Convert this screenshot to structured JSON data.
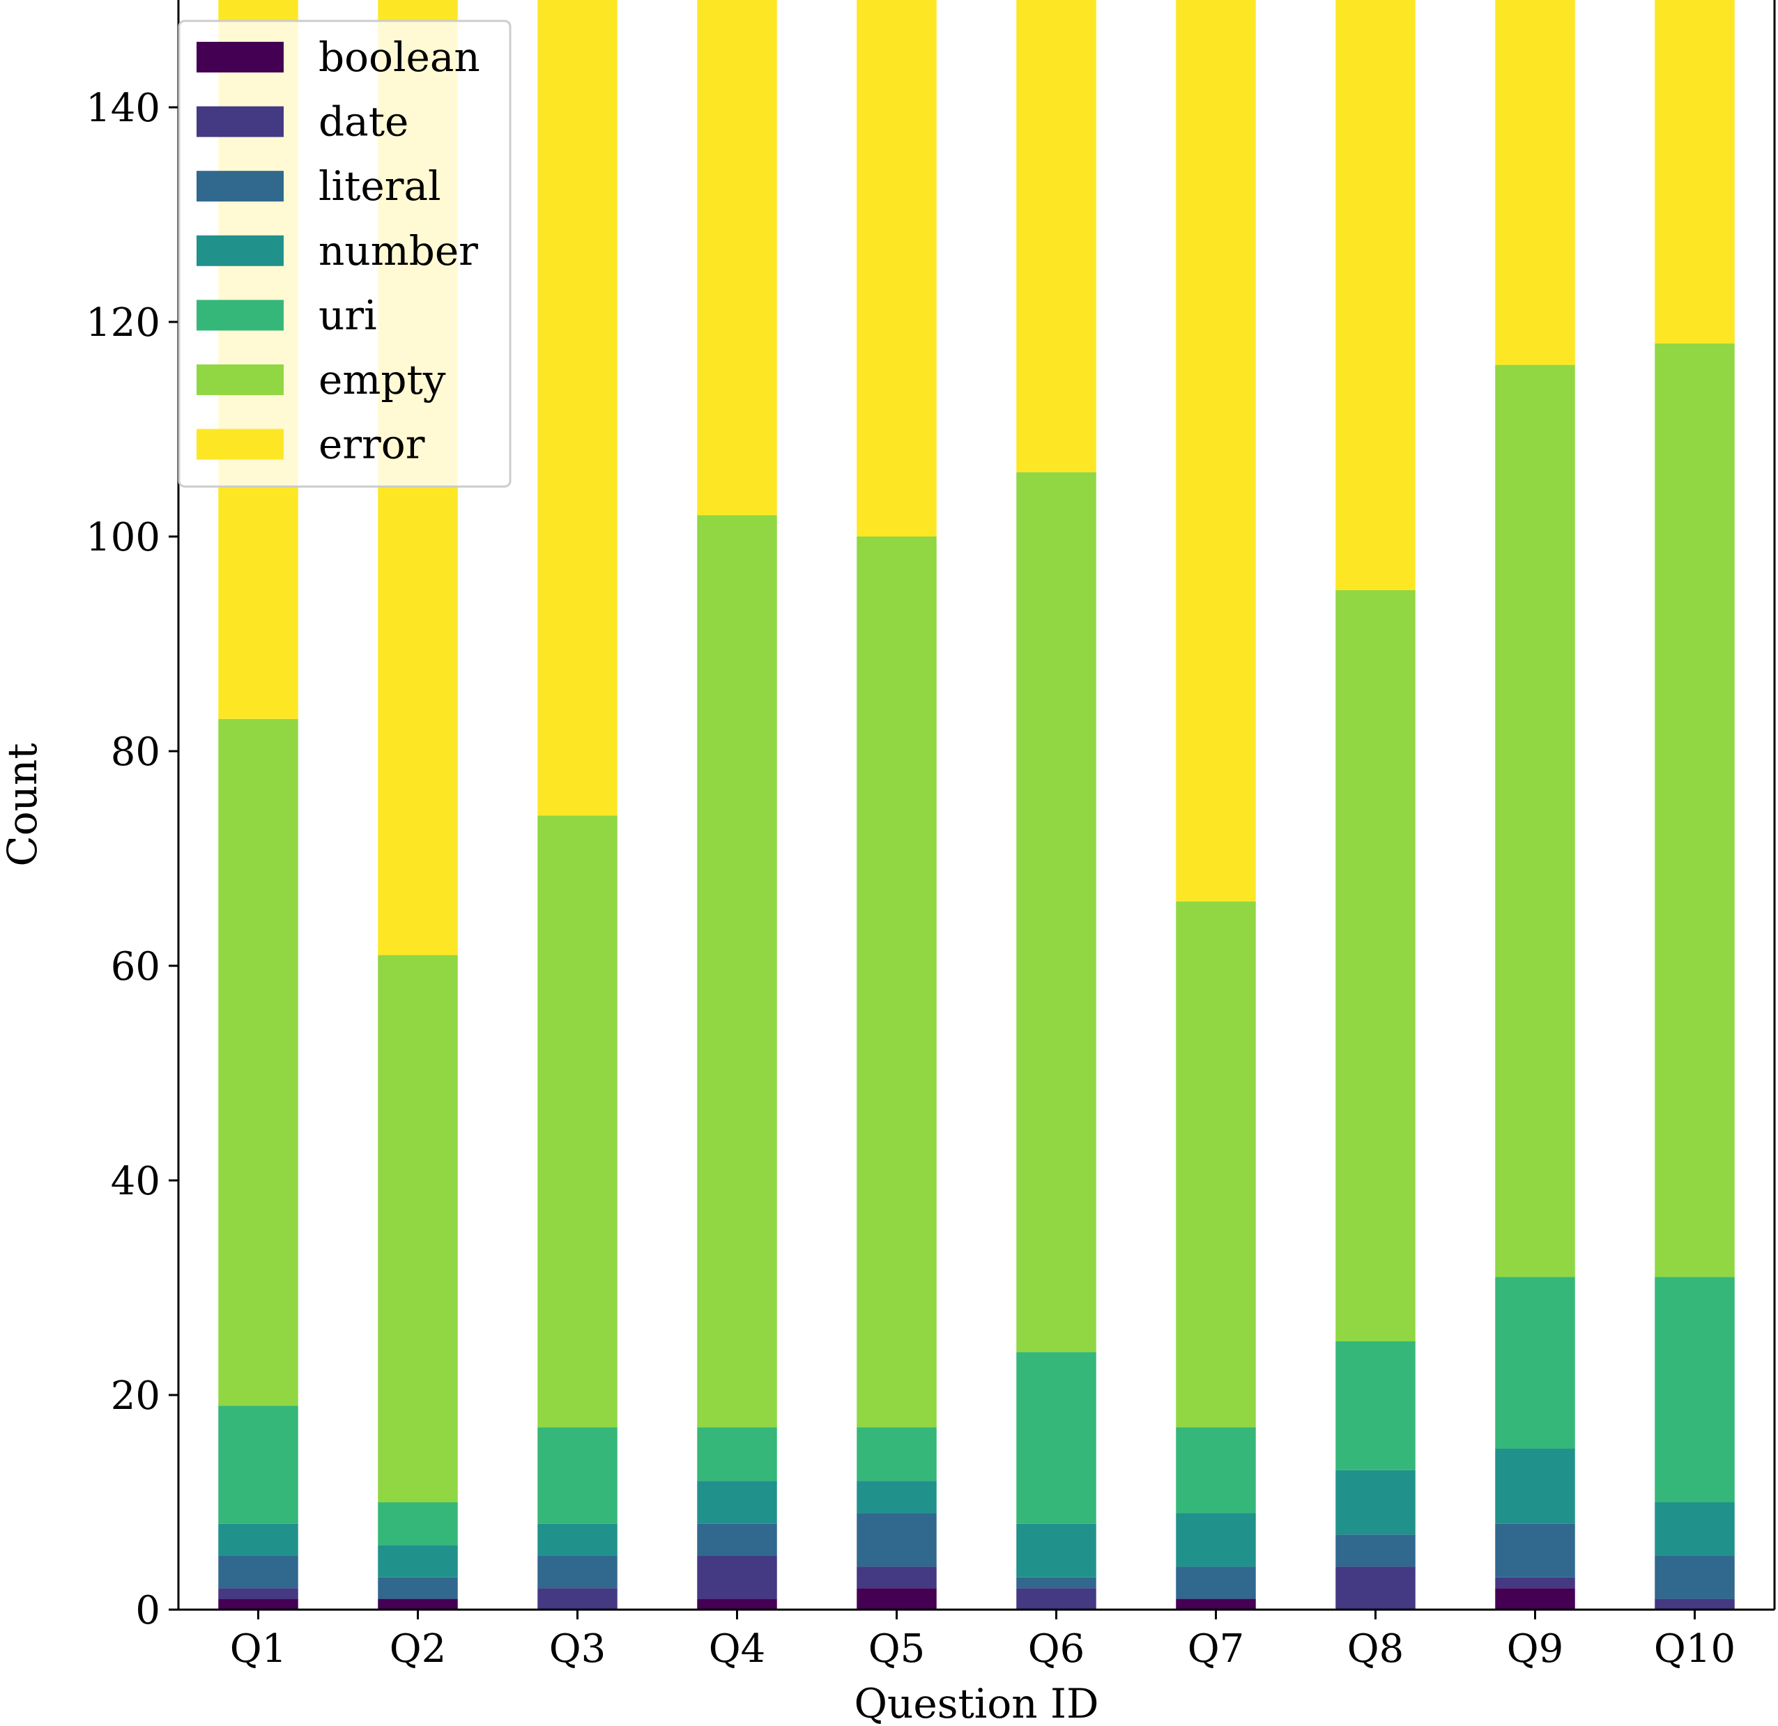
{
  "chart_data": {
    "type": "bar",
    "stacked": true,
    "title": "",
    "xlabel": "Question ID",
    "ylabel": "Count",
    "ylim": [
      0,
      150
    ],
    "yticks": [
      0,
      20,
      40,
      60,
      80,
      100,
      120,
      140
    ],
    "grid": false,
    "legend_position": "top-left",
    "categories": [
      "Q1",
      "Q2",
      "Q3",
      "Q4",
      "Q5",
      "Q6",
      "Q7",
      "Q8",
      "Q9",
      "Q10"
    ],
    "series": [
      {
        "name": "boolean",
        "color": "#440154",
        "values": [
          1,
          1,
          0,
          1,
          2,
          0,
          1,
          0,
          2,
          0
        ]
      },
      {
        "name": "date",
        "color": "#443983",
        "values": [
          1,
          0,
          2,
          4,
          2,
          2,
          0,
          4,
          1,
          1
        ]
      },
      {
        "name": "literal",
        "color": "#31688e",
        "values": [
          3,
          2,
          3,
          3,
          5,
          1,
          3,
          3,
          5,
          4
        ]
      },
      {
        "name": "number",
        "color": "#21918c",
        "values": [
          3,
          3,
          3,
          4,
          3,
          5,
          5,
          6,
          7,
          5
        ]
      },
      {
        "name": "uri",
        "color": "#35b779",
        "values": [
          11,
          4,
          9,
          5,
          5,
          16,
          8,
          12,
          16,
          21
        ]
      },
      {
        "name": "empty",
        "color": "#90d743",
        "values": [
          64,
          51,
          57,
          85,
          83,
          82,
          49,
          70,
          85,
          87
        ]
      },
      {
        "name": "error",
        "color": "#fde725",
        "values": [
          67,
          89,
          76,
          48,
          50,
          44,
          84,
          55,
          34,
          32
        ]
      }
    ]
  }
}
